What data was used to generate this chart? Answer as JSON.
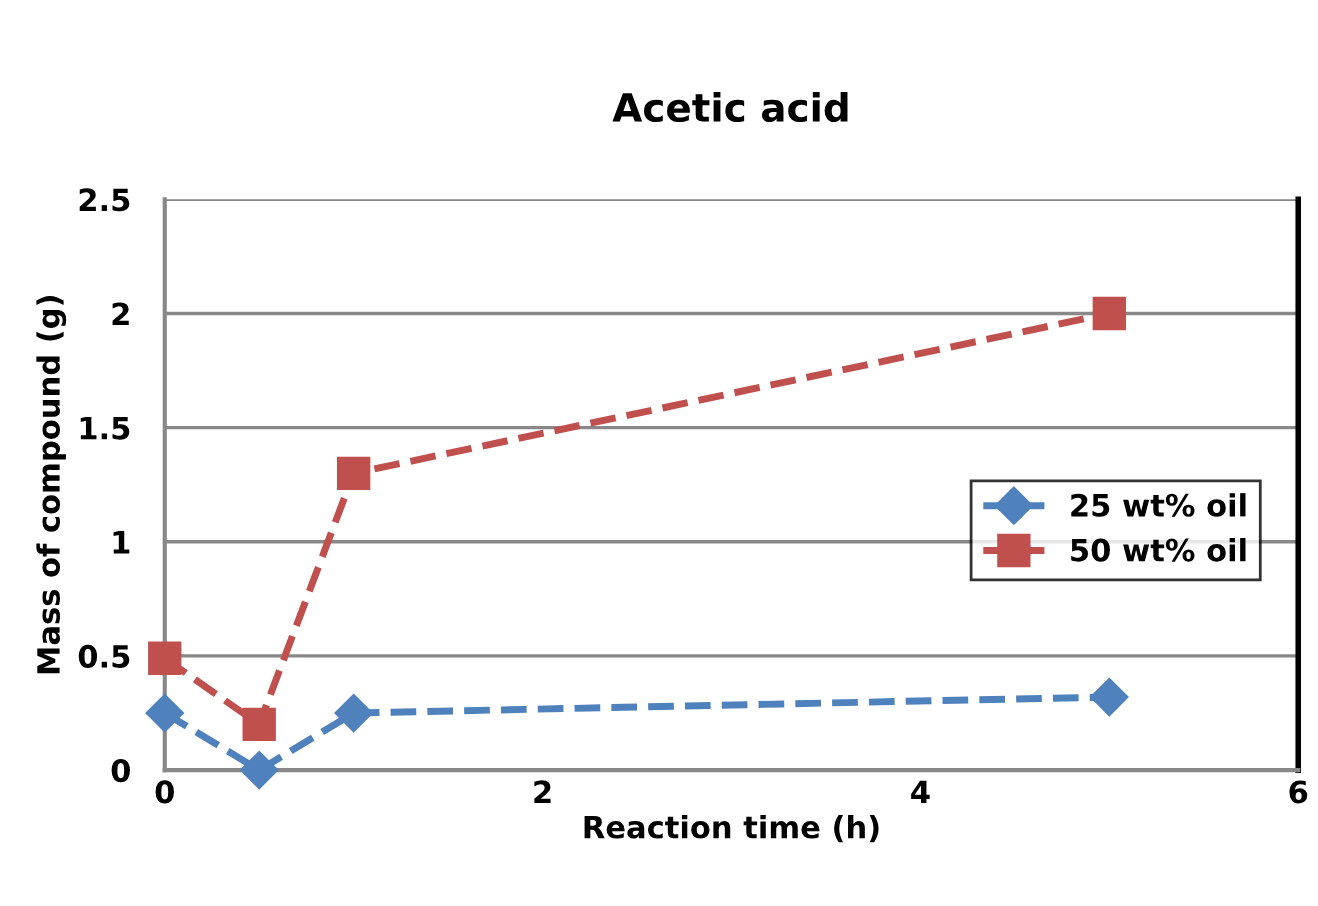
{
  "chart_data": {
    "type": "line",
    "title": "Acetic acid",
    "xlabel": "Reaction time (h)",
    "ylabel": "Mass of compound (g)",
    "x": [
      0,
      0.5,
      1,
      5
    ],
    "series": [
      {
        "name": "25 wt% oil",
        "color": "#4f81bd",
        "marker": "diamond",
        "values": [
          0.25,
          0,
          0.25,
          0.32
        ]
      },
      {
        "name": "50 wt% oil",
        "color": "#c0504d",
        "marker": "square",
        "values": [
          0.49,
          0.2,
          1.3,
          2.0
        ]
      }
    ],
    "xlim": [
      0,
      6
    ],
    "xticks": [
      0,
      2,
      4,
      6
    ],
    "ylim": [
      0,
      2.5
    ],
    "yticks": [
      0,
      0.5,
      1,
      1.5,
      2,
      2.5
    ],
    "grid": "y",
    "legend": "right",
    "line_style": "dashed"
  }
}
